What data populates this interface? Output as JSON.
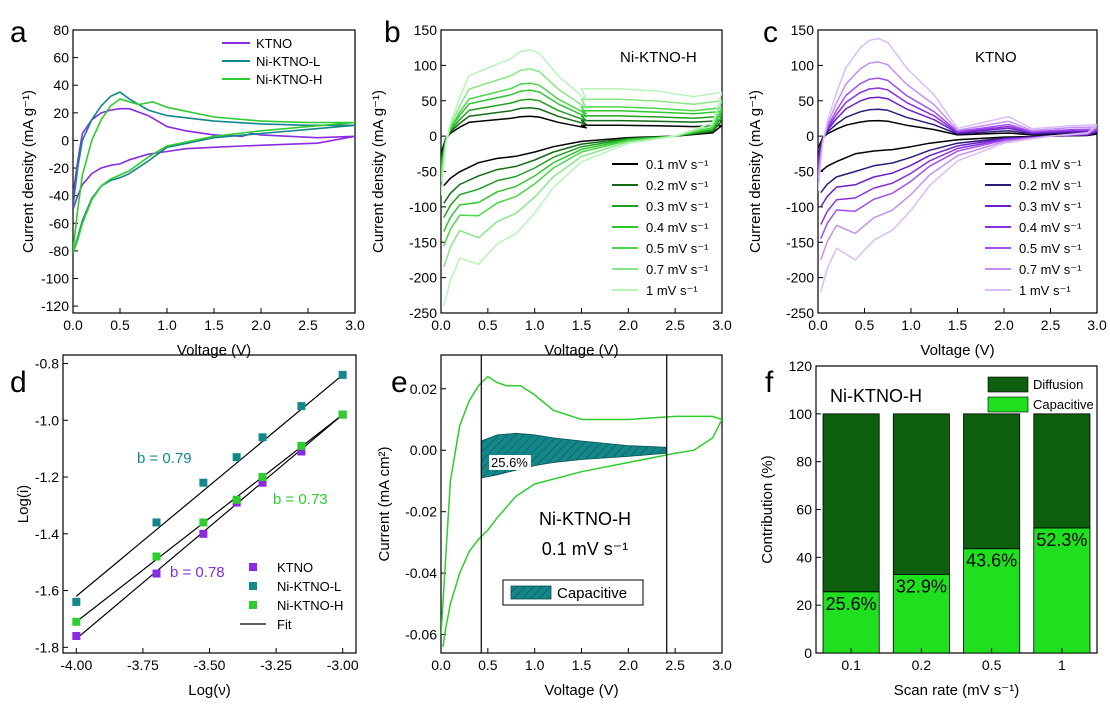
{
  "figure": {
    "panels": [
      {
        "id": "a",
        "letter": "a",
        "xlabel": "Voltage (V)",
        "ylabel": "Current density (mA g⁻¹)",
        "xlim": [
          0,
          3.0
        ],
        "ylim": [
          -125,
          80
        ],
        "xticks": [
          0,
          0.5,
          1.0,
          1.5,
          2.0,
          2.5,
          3.0
        ],
        "xtick_labels": [
          "0.0",
          "0.5",
          "1.0",
          "1.5",
          "2.0",
          "2.5",
          "3.0"
        ],
        "yticks": [
          -120,
          -100,
          -80,
          -60,
          -40,
          -20,
          0,
          20,
          40,
          60,
          80
        ],
        "ytick_labels": [
          "-120",
          "-100",
          "-80",
          "-60",
          "-40",
          "-20",
          "0",
          "20",
          "40",
          "60",
          "80"
        ],
        "legend": [
          "KTNO",
          "Ni-KTNO-L",
          "Ni-KTNO-H"
        ],
        "legend_colors": [
          "#8a2be2",
          "#13888b",
          "#2ecc2e"
        ]
      },
      {
        "id": "b",
        "letter": "b",
        "xlabel": "Voltage (V)",
        "ylabel": "Current density (mA g⁻¹)",
        "xlim": [
          0,
          3.0
        ],
        "ylim": [
          -250,
          150
        ],
        "xticks": [
          0,
          0.5,
          1.0,
          1.5,
          2.0,
          2.5,
          3.0
        ],
        "xtick_labels": [
          "0.0",
          "0.5",
          "1.0",
          "1.5",
          "2.0",
          "2.5",
          "3.0"
        ],
        "yticks": [
          -250,
          -200,
          -150,
          -100,
          -50,
          0,
          50,
          100,
          150
        ],
        "ytick_labels": [
          "-250",
          "-200",
          "-150",
          "-100",
          "-50",
          "0",
          "50",
          "100",
          "150"
        ],
        "title": "Ni-KTNO-H",
        "legend": [
          "0.1 mV s⁻¹",
          "0.2 mV s⁻¹",
          "0.3 mV s⁻¹",
          "0.4 mV s⁻¹",
          "0.5 mV s⁻¹",
          "0.7 mV s⁻¹",
          "1 mV s⁻¹"
        ],
        "legend_colors": [
          "#000000",
          "#146b14",
          "#1fa01f",
          "#2ec82e",
          "#4ad84a",
          "#86e886",
          "#b8f4b8"
        ]
      },
      {
        "id": "c",
        "letter": "c",
        "xlabel": "Voltage (V)",
        "ylabel": "Current density (mA g⁻¹)",
        "xlim": [
          0,
          3.0
        ],
        "ylim": [
          -250,
          150
        ],
        "xticks": [
          0,
          0.5,
          1.0,
          1.5,
          2.0,
          2.5,
          3.0
        ],
        "xtick_labels": [
          "0.0",
          "0.5",
          "1.0",
          "1.5",
          "2.0",
          "2.5",
          "3.0"
        ],
        "yticks": [
          -250,
          -200,
          -150,
          -100,
          -50,
          0,
          50,
          100,
          150
        ],
        "ytick_labels": [
          "-250",
          "-200",
          "-150",
          "-100",
          "-50",
          "0",
          "50",
          "100",
          "150"
        ],
        "title": "KTNO",
        "legend": [
          "0.1 mV s⁻¹",
          "0.2 mV s⁻¹",
          "0.3 mV s⁻¹",
          "0.4 mV s⁻¹",
          "0.5 mV s⁻¹",
          "0.7 mV s⁻¹",
          "1 mV s⁻¹"
        ],
        "legend_colors": [
          "#000000",
          "#2a1a7a",
          "#6a1fc8",
          "#8a30e0",
          "#a050ee",
          "#c490f2",
          "#dcbcf8"
        ]
      },
      {
        "id": "d",
        "letter": "d",
        "xlabel": "Log(ν)",
        "ylabel": "Log(i)",
        "xlim": [
          -4.05,
          -2.95
        ],
        "ylim": [
          -1.82,
          -0.77
        ],
        "xticks": [
          -4.0,
          -3.75,
          -3.5,
          -3.25,
          -3.0
        ],
        "xtick_labels": [
          "-4.00",
          "-3.75",
          "-3.50",
          "-3.25",
          "-3.00"
        ],
        "yticks": [
          -1.8,
          -1.6,
          -1.4,
          -1.2,
          -1.0,
          -0.8
        ],
        "ytick_labels": [
          "-1.8",
          "-1.6",
          "-1.4",
          "-1.2",
          "-1.0",
          "-0.8"
        ],
        "legend": [
          "KTNO",
          "Ni-KTNO-L",
          "Ni-KTNO-H",
          "Fit"
        ],
        "legend_colors": [
          "#8a2be2",
          "#13888b",
          "#2ecc2e",
          "#000000"
        ],
        "annotations": [
          "b = 0.79",
          "b = 0.73",
          "b = 0.78"
        ]
      },
      {
        "id": "e",
        "letter": "e",
        "xlabel": "Voltage (V)",
        "ylabel": "Current (mA cm²)",
        "xlim": [
          0,
          3.0
        ],
        "ylim": [
          -0.066,
          0.031
        ],
        "xticks": [
          0,
          0.5,
          1.0,
          1.5,
          2.0,
          2.5,
          3.0
        ],
        "xtick_labels": [
          "0.0",
          "0.5",
          "1.0",
          "1.5",
          "2.0",
          "2.5",
          "3.0"
        ],
        "yticks": [
          -0.06,
          -0.04,
          -0.02,
          0.0,
          0.02
        ],
        "ytick_labels": [
          "-0.06",
          "-0.04",
          "-0.02",
          "0.00",
          "0.02"
        ],
        "title": "Ni-KTNO-H",
        "subtitle": "0.1 mV s⁻¹",
        "legend": [
          "Capacitive"
        ],
        "legend_colors": [
          "#13888b"
        ],
        "annotations": [
          "25.6%"
        ]
      },
      {
        "id": "f",
        "letter": "f",
        "xlabel": "Scan rate (mV s⁻¹)",
        "ylabel": "Contribution (%)",
        "ylim": [
          0,
          120
        ],
        "yticks": [
          0,
          20,
          40,
          60,
          80,
          100,
          120
        ],
        "ytick_labels": [
          "0",
          "20",
          "40",
          "60",
          "80",
          "100",
          "120"
        ],
        "title": "Ni-KTNO-H",
        "legend": [
          "Diffusion",
          "Capacitive"
        ],
        "legend_colors": [
          "#0d5e0d",
          "#1ee01e"
        ]
      }
    ]
  },
  "chart_data": [
    {
      "type": "line",
      "panel": "a",
      "series": [
        {
          "name": "KTNO",
          "x": [
            0.0,
            0.05,
            0.1,
            0.2,
            0.3,
            0.4,
            0.5,
            0.6,
            0.8,
            1.0,
            1.2,
            1.5,
            1.8,
            1.9,
            2.0,
            2.3,
            2.6,
            3.0,
            2.6,
            2.2,
            1.8,
            1.5,
            1.2,
            1.0,
            0.8,
            0.6,
            0.5,
            0.4,
            0.3,
            0.2,
            0.1,
            0.05,
            0.0
          ],
          "y": [
            -40,
            -15,
            5,
            15,
            20,
            22,
            23,
            23,
            18,
            10,
            7,
            4,
            3,
            5,
            4,
            3,
            2,
            3,
            -2,
            -3,
            -4,
            -5,
            -6,
            -8,
            -10,
            -14,
            -17,
            -18,
            -20,
            -24,
            -32,
            -40,
            -50
          ]
        },
        {
          "name": "Ni-KTNO-L",
          "x": [
            0.0,
            0.05,
            0.1,
            0.2,
            0.3,
            0.4,
            0.5,
            0.6,
            0.8,
            1.0,
            1.5,
            2.0,
            2.5,
            3.0,
            2.5,
            2.0,
            1.5,
            1.0,
            0.8,
            0.6,
            0.5,
            0.4,
            0.3,
            0.2,
            0.1,
            0.05,
            0.0
          ],
          "y": [
            -48,
            -20,
            0,
            15,
            25,
            32,
            35,
            30,
            22,
            18,
            14,
            12,
            11,
            11,
            8,
            5,
            2,
            -5,
            -15,
            -24,
            -27,
            -29,
            -33,
            -42,
            -58,
            -70,
            -82
          ]
        },
        {
          "name": "Ni-KTNO-H",
          "x": [
            0.0,
            0.05,
            0.1,
            0.2,
            0.3,
            0.4,
            0.5,
            0.6,
            0.7,
            0.85,
            1.0,
            1.5,
            2.0,
            2.5,
            3.0,
            2.5,
            2.0,
            1.5,
            1.0,
            0.8,
            0.6,
            0.5,
            0.4,
            0.3,
            0.2,
            0.1,
            0.05,
            0.0
          ],
          "y": [
            -80,
            -50,
            -25,
            0,
            15,
            25,
            30,
            28,
            26,
            28,
            24,
            17,
            14,
            13,
            13,
            10,
            7,
            3,
            -4,
            -12,
            -22,
            -25,
            -28,
            -33,
            -43,
            -60,
            -72,
            -82
          ]
        }
      ]
    },
    {
      "type": "line",
      "panel": "b",
      "series": [
        {
          "name": "0.1 mV s⁻¹",
          "peak": 28,
          "neg": -70,
          "hump": -30,
          "end": 15
        },
        {
          "name": "0.2 mV s⁻¹",
          "peak": 40,
          "neg": -95,
          "hump": -45,
          "end": 22
        },
        {
          "name": "0.3 mV s⁻¹",
          "peak": 52,
          "neg": -115,
          "hump": -60,
          "end": 28
        },
        {
          "name": "0.4 mV s⁻¹",
          "peak": 65,
          "neg": -135,
          "hump": -75,
          "end": 35
        },
        {
          "name": "0.5 mV s⁻¹",
          "peak": 75,
          "neg": -155,
          "hump": -90,
          "end": 40
        },
        {
          "name": "0.7 mV s⁻¹",
          "peak": 95,
          "neg": -185,
          "hump": -115,
          "end": 50
        },
        {
          "name": "1 mV s⁻¹",
          "peak": 122,
          "neg": -240,
          "hump": -145,
          "end": 62
        }
      ]
    },
    {
      "type": "line",
      "panel": "c",
      "series": [
        {
          "name": "0.1 mV s⁻¹",
          "peak": 22,
          "neg": -50,
          "hump": -20,
          "end": 3
        },
        {
          "name": "0.2 mV s⁻¹",
          "peak": 38,
          "neg": -80,
          "hump": -40,
          "end": 5
        },
        {
          "name": "0.3 mV s⁻¹",
          "peak": 55,
          "neg": -100,
          "hump": -55,
          "end": 7
        },
        {
          "name": "0.4 mV s⁻¹",
          "peak": 68,
          "neg": -125,
          "hump": -70,
          "end": 9
        },
        {
          "name": "0.5 mV s⁻¹",
          "peak": 82,
          "neg": -145,
          "hump": -85,
          "end": 10
        },
        {
          "name": "0.7 mV s⁻¹",
          "peak": 105,
          "neg": -175,
          "hump": -110,
          "end": 13
        },
        {
          "name": "1 mV s⁻¹",
          "peak": 138,
          "neg": -220,
          "hump": -140,
          "end": 16
        }
      ]
    },
    {
      "type": "scatter",
      "panel": "d",
      "x": [
        -4.0,
        -3.699,
        -3.523,
        -3.398,
        -3.301,
        -3.155,
        -3.0
      ],
      "series": [
        {
          "name": "KTNO",
          "y": [
            -1.76,
            -1.54,
            -1.4,
            -1.29,
            -1.22,
            -1.11,
            -0.98
          ],
          "fit": [
            -1.77,
            -0.98
          ]
        },
        {
          "name": "Ni-KTNO-L",
          "y": [
            -1.64,
            -1.36,
            -1.22,
            -1.13,
            -1.06,
            -0.95,
            -0.84
          ],
          "fit": [
            -1.62,
            -0.84
          ]
        },
        {
          "name": "Ni-KTNO-H",
          "y": [
            -1.71,
            -1.48,
            -1.36,
            -1.28,
            -1.2,
            -1.09,
            -0.98
          ],
          "fit": [
            -1.71,
            -0.98
          ]
        }
      ]
    },
    {
      "type": "line",
      "panel": "e",
      "cv": {
        "x": [
          0.0,
          0.05,
          0.1,
          0.2,
          0.3,
          0.4,
          0.5,
          0.6,
          0.7,
          0.85,
          1.0,
          1.2,
          1.5,
          2.0,
          2.5,
          2.8,
          2.9,
          3.0,
          2.9,
          2.7,
          2.5,
          2.0,
          1.5,
          1.0,
          0.8,
          0.6,
          0.5,
          0.4,
          0.3,
          0.2,
          0.1,
          0.05,
          0.02
        ],
        "y": [
          -0.06,
          -0.035,
          -0.01,
          0.008,
          0.016,
          0.021,
          0.024,
          0.022,
          0.021,
          0.021,
          0.018,
          0.013,
          0.01,
          0.01,
          0.011,
          0.011,
          0.011,
          0.01,
          0.004,
          0.0,
          -0.001,
          -0.004,
          -0.007,
          -0.011,
          -0.015,
          -0.022,
          -0.026,
          -0.029,
          -0.033,
          -0.04,
          -0.05,
          -0.058,
          -0.064
        ]
      },
      "capacitive": {
        "x": [
          0.43,
          0.6,
          0.8,
          1.0,
          1.2,
          1.5,
          2.0,
          2.4,
          2.4,
          2.0,
          1.5,
          1.2,
          1.0,
          0.8,
          0.6,
          0.43
        ],
        "y": [
          0.003,
          0.005,
          0.0055,
          0.005,
          0.004,
          0.003,
          0.0015,
          0.001,
          -0.001,
          -0.002,
          -0.003,
          -0.004,
          -0.005,
          -0.0065,
          -0.008,
          -0.009
        ]
      },
      "vlines": [
        0.43,
        2.41
      ]
    },
    {
      "type": "bar",
      "panel": "f",
      "categories": [
        "0.1",
        "0.2",
        "0.5",
        "1"
      ],
      "series": [
        {
          "name": "Capacitive",
          "values": [
            25.6,
            32.9,
            43.6,
            52.3
          ]
        },
        {
          "name": "Diffusion",
          "values": [
            74.4,
            67.1,
            56.4,
            47.7
          ]
        }
      ],
      "labels": [
        "25.6%",
        "32.9%",
        "43.6%",
        "52.3%"
      ]
    }
  ]
}
